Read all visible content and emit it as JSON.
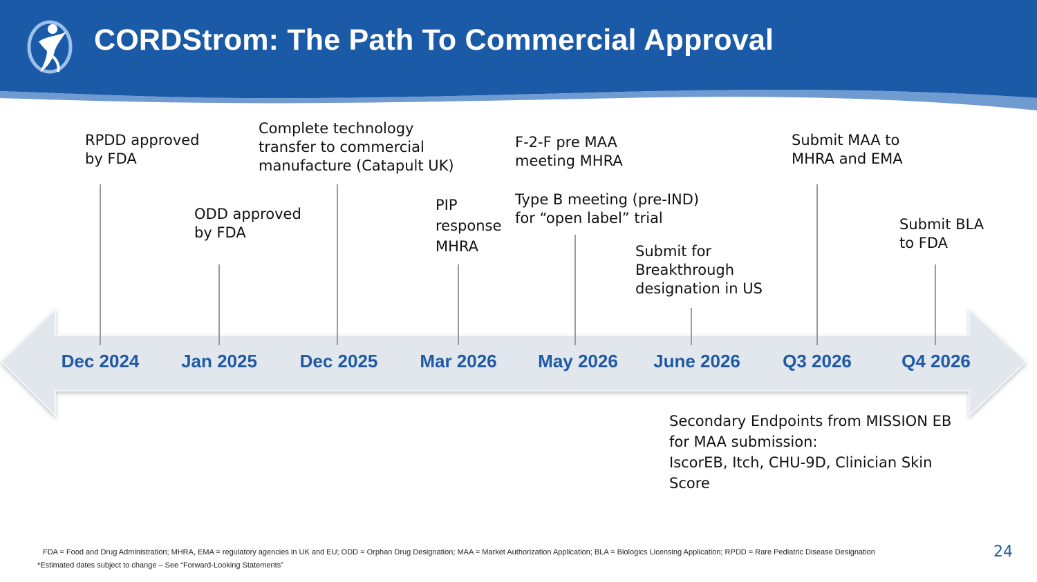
{
  "header": {
    "title": "CORDStrom: The Path To Commercial Approval",
    "bg_color": "#1b5aa6",
    "accent_color": "#6f9bd0"
  },
  "timeline": {
    "dates": [
      "Dec 2024",
      "Jan 2025",
      "Dec 2025",
      "Mar 2026",
      "May 2026",
      "June 2026",
      "Q3 2026",
      "Q4 2026"
    ],
    "events": {
      "rpdd": "RPDD approved\nby FDA",
      "odd": "ODD approved\nby FDA",
      "tech_transfer": "Complete technology\ntransfer to commercial\nmanufacture (Catapult UK)",
      "pip": "PIP\nresponse\nMHRA",
      "f2f": "F-2-F pre MAA\nmeeting MHRA",
      "type_b": "Type B meeting (pre-IND)\nfor “open label” trial",
      "breakthrough": "Submit for\nBreakthrough\ndesignation in US",
      "maa": "Submit MAA to\nMHRA and EMA",
      "bla": "Submit BLA\nto FDA",
      "secondary": "Secondary Endpoints from MISSION EB\nfor MAA submission:\nIscorEB, Itch, CHU-9D, Clinician Skin\nScore"
    },
    "date_color": "#1f5aa6",
    "arrow_color": "#e1e7ec"
  },
  "footer": {
    "abbreviations": "FDA = Food and Drug Administration; MHRA, EMA = regulatory agencies in UK and EU;  ODD = Orphan Drug Designation; MAA = Market Authorization Application; BLA = Biologics Licensing Application; RPDD = Rare Pediatric Disease Designation",
    "disclaimer": "*Estimated dates subject to change – See “Forward-Looking Statements”",
    "page_number": "24"
  }
}
